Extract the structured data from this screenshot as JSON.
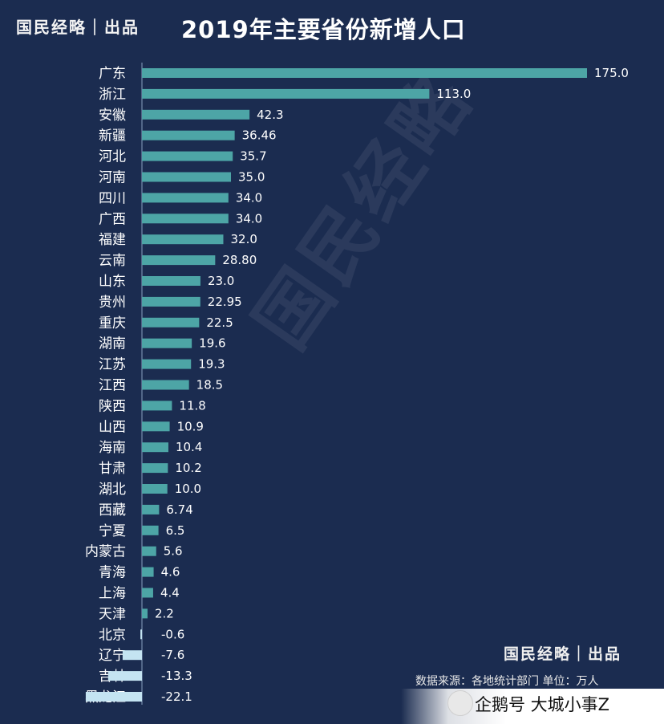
{
  "header": {
    "brand": "国民经略｜出品",
    "title": "2019年主要省份新增人口"
  },
  "watermark": "国民经略",
  "footer": {
    "brand": "国民经略｜出品",
    "source": "数据来源：各地统计部门 单位：万人",
    "platform": "企鹅号 大城小事Z"
  },
  "colors": {
    "background": "#1b2c50",
    "bar_positive": "#4da5a6",
    "bar_negative": "#c4e4f2"
  },
  "chart_data": {
    "type": "bar",
    "orientation": "horizontal",
    "categories": [
      "广东",
      "浙江",
      "安徽",
      "新疆",
      "河北",
      "河南",
      "四川",
      "广西",
      "福建",
      "云南",
      "山东",
      "贵州",
      "重庆",
      "湖南",
      "江苏",
      "江西",
      "陕西",
      "山西",
      "海南",
      "甘肃",
      "湖北",
      "西藏",
      "宁夏",
      "内蒙古",
      "青海",
      "上海",
      "天津",
      "北京",
      "辽宁",
      "吉林",
      "黑龙江"
    ],
    "values": [
      175.0,
      113.0,
      42.3,
      36.46,
      35.7,
      35.0,
      34.0,
      34.0,
      32.0,
      28.8,
      23.0,
      22.95,
      22.5,
      19.6,
      19.3,
      18.5,
      11.8,
      10.9,
      10.4,
      10.2,
      10.0,
      6.74,
      6.5,
      5.6,
      4.6,
      4.4,
      2.2,
      -0.6,
      -7.6,
      -13.3,
      -22.1
    ],
    "labels": [
      "175.0",
      "113.0",
      "42.3",
      "36.46",
      "35.7",
      "35.0",
      "34.0",
      "34.0",
      "32.0",
      "28.80",
      "23.0",
      "22.95",
      "22.5",
      "19.6",
      "19.3",
      "18.5",
      "11.8",
      "10.9",
      "10.4",
      "10.2",
      "10.0",
      "6.74",
      "6.5",
      "5.6",
      "4.6",
      "4.4",
      "2.2",
      "-0.6",
      "-7.6",
      "-13.3",
      "-22.1"
    ],
    "title": "2019年主要省份新增人口",
    "unit": "万人",
    "grid": false,
    "legend": "none"
  }
}
